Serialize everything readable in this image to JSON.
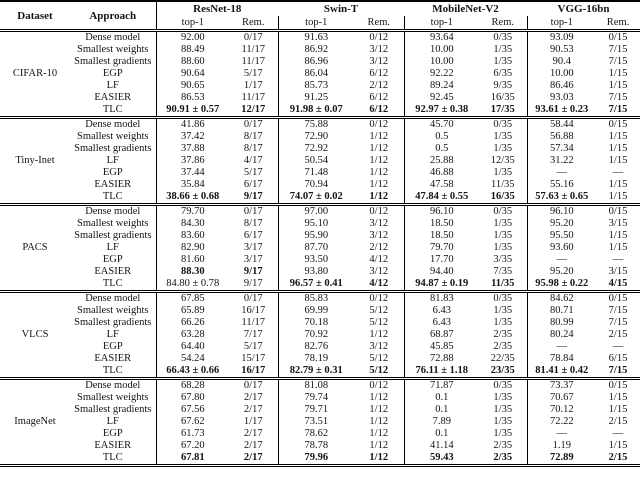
{
  "header": {
    "dataset": "Dataset",
    "approach": "Approach",
    "groups": [
      "ResNet-18",
      "Swin-T",
      "MobileNet-V2",
      "VGG-16bn"
    ],
    "sub_top1": "top-1",
    "sub_rem": "Rem."
  },
  "blocks": [
    {
      "dataset": "CIFAR-10",
      "rows": [
        {
          "approach": "Dense model",
          "cells": [
            "92.00",
            "0/17",
            "91.63",
            "0/12",
            "93.64",
            "0/35",
            "93.09",
            "0/15"
          ]
        },
        {
          "approach": "Smallest weights",
          "cells": [
            "88.49",
            "11/17",
            "86.92",
            "3/12",
            "10.00",
            "1/35",
            "90.53",
            "7/15"
          ]
        },
        {
          "approach": "Smallest gradients",
          "cells": [
            "88.60",
            "11/17",
            "86.96",
            "3/12",
            "10.00",
            "1/35",
            "90.4",
            "7/15"
          ]
        },
        {
          "approach": "EGP",
          "cells": [
            "90.64",
            "5/17",
            "86.04",
            "6/12",
            "92.22",
            "6/35",
            "10.00",
            "1/15"
          ]
        },
        {
          "approach": "LF",
          "cells": [
            "90.65",
            "1/17",
            "85.73",
            "2/12",
            "89.24",
            "9/35",
            "86.46",
            "1/15"
          ]
        },
        {
          "approach": "EASIER",
          "cells": [
            "86.53",
            "11/17",
            "91.25",
            "6/12",
            "92.45",
            "16/35",
            "93.03",
            "7/15"
          ]
        },
        {
          "approach": "TLC",
          "cells": [
            "90.91 ± 0.57",
            "12/17",
            "91.98 ± 0.07",
            "6/12",
            "92.97 ± 0.38",
            "17/35",
            "93.61 ± 0.23",
            "7/15"
          ],
          "bold": [
            1,
            1,
            1,
            1,
            1,
            1,
            1,
            1
          ]
        }
      ]
    },
    {
      "dataset": "Tiny-Inet",
      "rows": [
        {
          "approach": "Dense model",
          "cells": [
            "41.86",
            "0/17",
            "75.88",
            "0/12",
            "45.70",
            "0/35",
            "58.44",
            "0/15"
          ]
        },
        {
          "approach": "Smallest weights",
          "cells": [
            "37.42",
            "8/17",
            "72.90",
            "1/12",
            "0.5",
            "1/35",
            "56.88",
            "1/15"
          ]
        },
        {
          "approach": "Smallest gradients",
          "cells": [
            "37.88",
            "8/17",
            "72.92",
            "1/12",
            "0.5",
            "1/35",
            "57.34",
            "1/15"
          ]
        },
        {
          "approach": "LF",
          "cells": [
            "37.86",
            "4/17",
            "50.54",
            "1/12",
            "25.88",
            "12/35",
            "31.22",
            "1/15"
          ]
        },
        {
          "approach": "EGP",
          "cells": [
            "37.44",
            "5/17",
            "71.48",
            "1/12",
            "46.88",
            "1/35",
            "—",
            "—"
          ]
        },
        {
          "approach": "EASIER",
          "cells": [
            "35.84",
            "6/17",
            "70.94",
            "1/12",
            "47.58",
            "11/35",
            "55.16",
            "1/15"
          ]
        },
        {
          "approach": "TLC",
          "cells": [
            "38.66 ± 0.68",
            "9/17",
            "74.07 ± 0.02",
            "1/12",
            "47.84 ± 0.55",
            "16/35",
            "57.63 ± 0.65",
            "1/15"
          ],
          "bold": [
            1,
            1,
            1,
            1,
            1,
            1,
            1,
            0
          ]
        }
      ]
    },
    {
      "dataset": "PACS",
      "rows": [
        {
          "approach": "Dense model",
          "cells": [
            "79.70",
            "0/17",
            "97.00",
            "0/12",
            "96.10",
            "0/35",
            "96.10",
            "0/15"
          ]
        },
        {
          "approach": "Smallest weights",
          "cells": [
            "84.30",
            "8/17",
            "95.10",
            "3/12",
            "18.50",
            "1/35",
            "95.20",
            "3/15"
          ]
        },
        {
          "approach": "Smallest gradients",
          "cells": [
            "83.60",
            "6/17",
            "95.90",
            "3/12",
            "18.50",
            "1/35",
            "95.50",
            "1/15"
          ]
        },
        {
          "approach": "LF",
          "cells": [
            "82.90",
            "3/17",
            "87.70",
            "2/12",
            "79.70",
            "1/35",
            "93.60",
            "1/15"
          ]
        },
        {
          "approach": "EGP",
          "cells": [
            "81.60",
            "3/17",
            "93.50",
            "4/12",
            "17.70",
            "3/35",
            "—",
            "—"
          ]
        },
        {
          "approach": "EASIER",
          "cells": [
            "88.30",
            "9/17",
            "93.80",
            "3/12",
            "94.40",
            "7/35",
            "95.20",
            "3/15"
          ],
          "bold": [
            1,
            1,
            0,
            0,
            0,
            0,
            0,
            0
          ]
        },
        {
          "approach": "TLC",
          "cells": [
            "84.80 ± 0.78",
            "9/17",
            "96.57 ± 0.41",
            "4/12",
            "94.87 ± 0.19",
            "11/35",
            "95.98 ± 0.22",
            "4/15"
          ],
          "bold": [
            0,
            0,
            1,
            1,
            1,
            1,
            1,
            1
          ]
        }
      ]
    },
    {
      "dataset": "VLCS",
      "rows": [
        {
          "approach": "Dense model",
          "cells": [
            "67.85",
            "0/17",
            "85.83",
            "0/12",
            "81.83",
            "0/35",
            "84.62",
            "0/15"
          ]
        },
        {
          "approach": "Smallest weights",
          "cells": [
            "65.89",
            "16/17",
            "69.99",
            "5/12",
            "6.43",
            "1/35",
            "80.71",
            "7/15"
          ]
        },
        {
          "approach": "Smallest gradients",
          "cells": [
            "66.26",
            "11/17",
            "70.18",
            "5/12",
            "6.43",
            "1/35",
            "80.99",
            "7/15"
          ]
        },
        {
          "approach": "LF",
          "cells": [
            "63.28",
            "7/17",
            "70.92",
            "1/12",
            "68.87",
            "2/35",
            "80.24",
            "2/15"
          ]
        },
        {
          "approach": "EGP",
          "cells": [
            "64.40",
            "5/17",
            "82.76",
            "3/12",
            "45.85",
            "2/35",
            "—",
            "—"
          ]
        },
        {
          "approach": "EASIER",
          "cells": [
            "54.24",
            "15/17",
            "78.19",
            "5/12",
            "72.88",
            "22/35",
            "78.84",
            "6/15"
          ]
        },
        {
          "approach": "TLC",
          "cells": [
            "66.43 ± 0.66",
            "16/17",
            "82.79 ± 0.31",
            "5/12",
            "76.11 ± 1.18",
            "23/35",
            "81.41 ± 0.42",
            "7/15"
          ],
          "bold": [
            1,
            1,
            1,
            1,
            1,
            1,
            1,
            1
          ]
        }
      ]
    },
    {
      "dataset": "ImageNet",
      "rows": [
        {
          "approach": "Dense model",
          "cells": [
            "68.28",
            "0/17",
            "81.08",
            "0/12",
            "71.87",
            "0/35",
            "73.37",
            "0/15"
          ]
        },
        {
          "approach": "Smallest weights",
          "cells": [
            "67.80",
            "2/17",
            "79.74",
            "1/12",
            "0.1",
            "1/35",
            "70.67",
            "1/15"
          ]
        },
        {
          "approach": "Smallest gradients",
          "cells": [
            "67.56",
            "2/17",
            "79.71",
            "1/12",
            "0.1",
            "1/35",
            "70.12",
            "1/15"
          ]
        },
        {
          "approach": "LF",
          "cells": [
            "67.62",
            "1/17",
            "73.51",
            "1/12",
            "7.89",
            "1/35",
            "72.22",
            "2/15"
          ]
        },
        {
          "approach": "EGP",
          "cells": [
            "61.73",
            "2/17",
            "78.62",
            "1/12",
            "0.1",
            "1/35",
            "—",
            "—"
          ]
        },
        {
          "approach": "EASIER",
          "cells": [
            "67.20",
            "2/17",
            "78.78",
            "1/12",
            "41.14",
            "2/35",
            "1.19",
            "1/15"
          ]
        },
        {
          "approach": "TLC",
          "cells": [
            "67.81",
            "2/17",
            "79.96",
            "1/12",
            "59.43",
            "2/35",
            "72.89",
            "2/15"
          ],
          "bold": [
            1,
            1,
            1,
            1,
            1,
            1,
            1,
            1
          ]
        }
      ]
    }
  ]
}
